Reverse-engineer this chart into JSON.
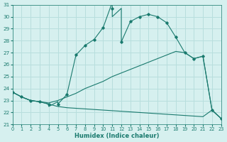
{
  "title": "",
  "xlabel": "Humidex (Indice chaleur)",
  "ylabel": "",
  "bg_color": "#d6f0ef",
  "grid_color": "#b8dedd",
  "line_color": "#1a7a6e",
  "xlim": [
    0,
    23
  ],
  "ylim": [
    21,
    31
  ],
  "xticks": [
    0,
    1,
    2,
    3,
    4,
    5,
    6,
    7,
    8,
    9,
    10,
    11,
    12,
    13,
    14,
    15,
    16,
    17,
    18,
    19,
    20,
    21,
    22,
    23
  ],
  "yticks": [
    21,
    22,
    23,
    24,
    25,
    26,
    27,
    28,
    29,
    30,
    31
  ],
  "series1_x": [
    0,
    1,
    2,
    3,
    4,
    4,
    5,
    5,
    6,
    7,
    8,
    9,
    10,
    11,
    11,
    12,
    12,
    13,
    14,
    15,
    16,
    17,
    18,
    19,
    20,
    21,
    22,
    23
  ],
  "series1_y": [
    23.7,
    23.3,
    23.0,
    22.9,
    22.7,
    22.5,
    22.9,
    22.7,
    23.5,
    26.8,
    27.6,
    28.1,
    29.1,
    31.2,
    30.0,
    30.7,
    27.9,
    29.6,
    30.0,
    30.2,
    30.0,
    29.5,
    28.3,
    27.0,
    26.5,
    26.7,
    22.2,
    21.5
  ],
  "series1_marker_x": [
    0,
    1,
    2,
    3,
    4,
    5,
    6,
    7,
    8,
    9,
    10,
    11,
    12,
    13,
    14,
    15,
    16,
    17,
    18,
    19,
    20,
    21,
    22,
    23
  ],
  "series1_marker_y": [
    23.7,
    23.3,
    23.0,
    22.9,
    22.7,
    22.7,
    23.5,
    26.8,
    27.6,
    28.1,
    29.1,
    30.7,
    27.9,
    29.6,
    30.0,
    30.2,
    30.0,
    29.5,
    28.3,
    27.0,
    26.5,
    26.7,
    22.2,
    21.5
  ],
  "series2_x": [
    0,
    1,
    2,
    3,
    4,
    5,
    6,
    7,
    8,
    9,
    10,
    11,
    12,
    13,
    14,
    15,
    16,
    17,
    18,
    19,
    20,
    21,
    22,
    23
  ],
  "series2_y": [
    23.7,
    23.3,
    23.0,
    22.9,
    22.8,
    23.0,
    23.3,
    23.6,
    24.0,
    24.3,
    24.6,
    25.0,
    25.3,
    25.6,
    25.9,
    26.2,
    26.5,
    26.8,
    27.1,
    27.0,
    26.5,
    26.7,
    22.2,
    21.5
  ],
  "series3_x": [
    0,
    1,
    2,
    3,
    4,
    5,
    6,
    7,
    8,
    9,
    10,
    11,
    12,
    13,
    14,
    15,
    16,
    17,
    18,
    19,
    20,
    21,
    22,
    23
  ],
  "series3_y": [
    23.7,
    23.3,
    23.0,
    22.9,
    22.7,
    22.5,
    22.4,
    22.35,
    22.3,
    22.25,
    22.2,
    22.15,
    22.1,
    22.05,
    22.0,
    21.95,
    21.9,
    21.85,
    21.8,
    21.75,
    21.7,
    21.65,
    22.2,
    21.5
  ]
}
